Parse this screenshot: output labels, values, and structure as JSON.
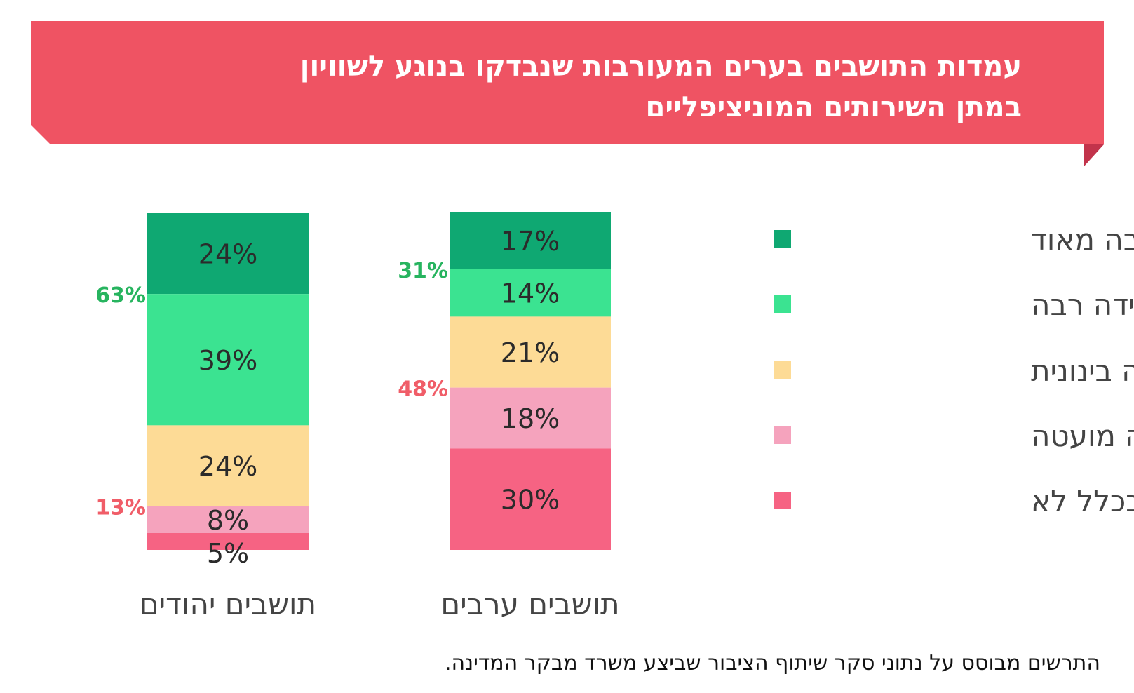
{
  "title": {
    "line1": "עמדות התושבים בערים המעורבות שנבדקו בנוגע לשוויון",
    "line2": "במתן השירותים המוניציפליים"
  },
  "footnote": "התרשים מבוסס על נתוני סקר שיתוף הציבור שביצע משרד מבקר המדינה.",
  "colors": {
    "banner": "#ef5363",
    "banner_fold": "#c2334b",
    "positive_label": "#27b45f",
    "negative_label": "#f05d68"
  },
  "chart_data": {
    "type": "bar",
    "stacked": true,
    "categories": [
      "תושבים יהודים",
      "תושבים ערבים"
    ],
    "series": [
      {
        "name": "במידה רבה מאוד",
        "color": "#0fa872",
        "values": [
          24,
          17
        ]
      },
      {
        "name": "במידה רבה",
        "color": "#3be391",
        "values": [
          39,
          14
        ]
      },
      {
        "name": "במידה בינונית",
        "color": "#fddb96",
        "values": [
          24,
          21
        ]
      },
      {
        "name": "במידה מועטה",
        "color": "#f5a3bd",
        "values": [
          8,
          18
        ]
      },
      {
        "name": "בכלל לא",
        "color": "#f66383",
        "values": [
          5,
          30
        ]
      }
    ],
    "group_labels": [
      {
        "category": 0,
        "positive": "63%",
        "negative": "13%"
      },
      {
        "category": 1,
        "positive": "31%",
        "negative": "48%"
      }
    ],
    "legend_position": "right",
    "grid": false
  }
}
